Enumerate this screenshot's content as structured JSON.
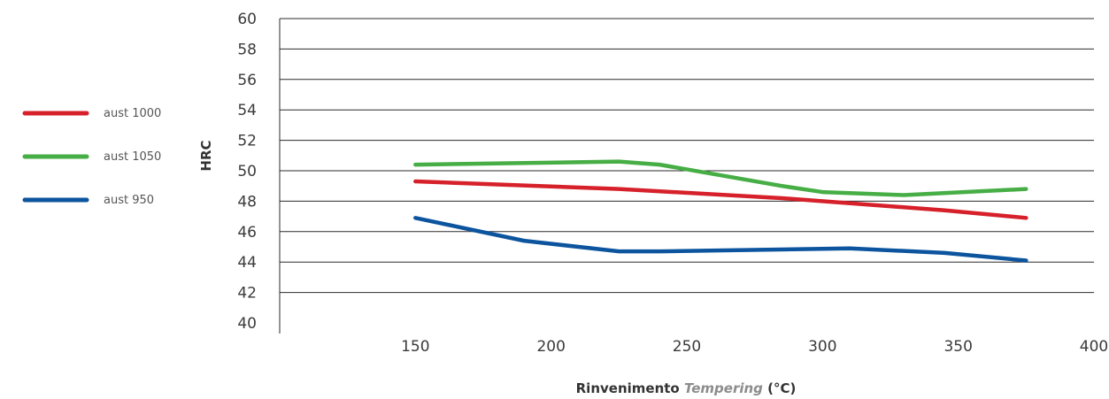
{
  "chart_data": {
    "type": "line",
    "xlabel": {
      "prefix": "Rinvenimento ",
      "italic": "Tempering",
      "suffix": " (°C)"
    },
    "ylabel": "HRC",
    "xlim": [
      100,
      400
    ],
    "ylim": [
      40,
      60
    ],
    "x_ticks": [
      150,
      200,
      250,
      300,
      350,
      400
    ],
    "y_ticks": [
      40,
      42,
      44,
      46,
      48,
      50,
      52,
      54,
      56,
      58,
      60
    ],
    "grid": "horizontal",
    "legend_position": "left",
    "series": [
      {
        "name": "aust 1000",
        "color": "#d6202a",
        "x": [
          150,
          225,
          285,
          345,
          375
        ],
        "y": [
          49.3,
          48.8,
          48.2,
          47.4,
          46.9
        ]
      },
      {
        "name": "aust 1050",
        "color": "#46ae45",
        "x": [
          150,
          225,
          240,
          285,
          300,
          330,
          375
        ],
        "y": [
          50.4,
          50.6,
          50.4,
          49.0,
          48.6,
          48.4,
          48.8
        ]
      },
      {
        "name": "aust 950",
        "color": "#0c549e",
        "x": [
          150,
          190,
          225,
          240,
          310,
          345,
          375
        ],
        "y": [
          46.9,
          45.4,
          44.7,
          44.7,
          44.9,
          44.6,
          44.1
        ]
      }
    ]
  }
}
